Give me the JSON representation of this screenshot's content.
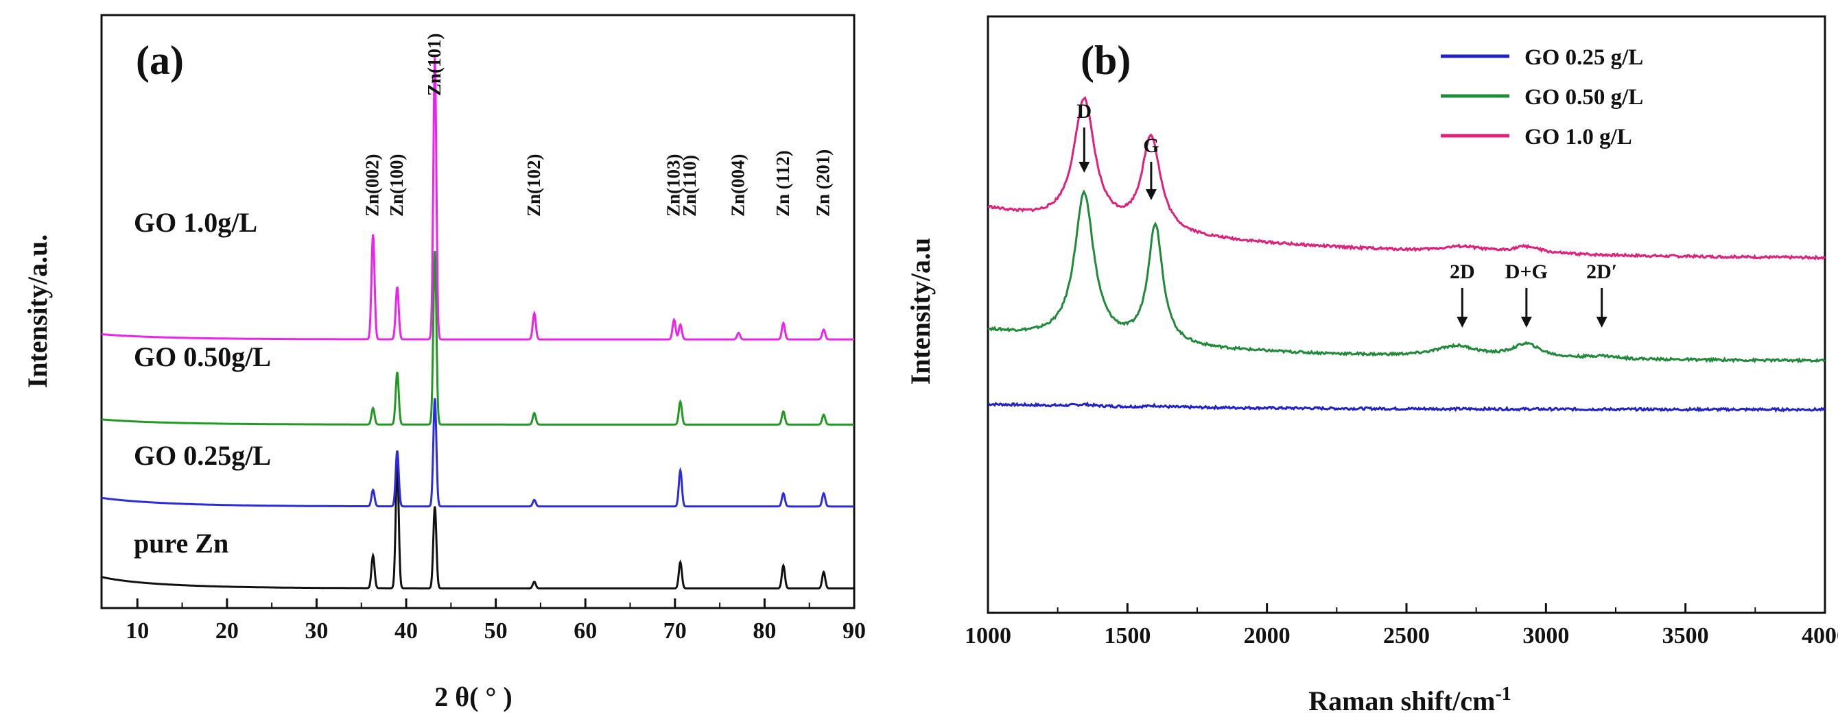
{
  "chart_data": [
    {
      "type": "line",
      "panel_label": "(a)",
      "xlabel": "2 θ( ° )",
      "ylabel": "Intensity/a.u.",
      "xlim": [
        6,
        90
      ],
      "xticks": [
        10,
        20,
        30,
        40,
        50,
        60,
        70,
        80,
        90
      ],
      "xtick_labels": [
        "10",
        "20",
        "30",
        "40",
        "50",
        "60",
        "70",
        "80",
        "90"
      ],
      "y_ticks": false,
      "series": [
        {
          "name": "pure Zn",
          "color": "#111111",
          "offset": 0,
          "baseline": 0.3,
          "decay": 1.2,
          "peaks": [
            [
              36.3,
              1.0
            ],
            [
              39.0,
              3.8
            ],
            [
              43.2,
              2.5
            ],
            [
              54.3,
              0.2
            ],
            [
              70.6,
              0.8
            ],
            [
              82.1,
              0.7
            ],
            [
              86.6,
              0.5
            ]
          ]
        },
        {
          "name": "GO 0.25g/L",
          "color": "#2b2be0",
          "offset": 2.5,
          "baseline": 0.25,
          "decay": 0.3,
          "peaks": [
            [
              36.3,
              0.5
            ],
            [
              39.0,
              1.7
            ],
            [
              43.2,
              3.3
            ],
            [
              54.3,
              0.2
            ],
            [
              70.6,
              1.1
            ],
            [
              82.1,
              0.4
            ],
            [
              86.6,
              0.4
            ]
          ]
        },
        {
          "name": "GO 0.50g/L",
          "color": "#229922",
          "offset": 5.0,
          "baseline": 0.15,
          "decay": 0.2,
          "peaks": [
            [
              36.3,
              0.5
            ],
            [
              39.0,
              1.6
            ],
            [
              43.2,
              5.3
            ],
            [
              54.3,
              0.35
            ],
            [
              70.6,
              0.7
            ],
            [
              82.1,
              0.4
            ],
            [
              86.6,
              0.3
            ]
          ]
        },
        {
          "name": "GO 1.0g/L",
          "color": "#ee22ee",
          "offset": 7.6,
          "baseline": 0.15,
          "decay": 0.2,
          "peaks": [
            [
              36.3,
              3.2
            ],
            [
              39.0,
              1.6
            ],
            [
              43.2,
              8.6
            ],
            [
              54.3,
              0.8
            ],
            [
              69.9,
              0.6
            ],
            [
              70.6,
              0.45
            ],
            [
              77.1,
              0.2
            ],
            [
              82.1,
              0.5
            ],
            [
              86.6,
              0.3
            ]
          ]
        }
      ],
      "series_labels": [
        "pure Zn",
        "GO 0.25g/L",
        "GO 0.50g/L",
        "GO 1.0g/L"
      ],
      "peak_labels": [
        {
          "text": "Zn(002)",
          "x": 36.3
        },
        {
          "text": "Zn(100)",
          "x": 39.0
        },
        {
          "text": "Zn(101)",
          "x": 43.2
        },
        {
          "text": "Zn(102)",
          "x": 54.3
        },
        {
          "text": "Zn(103)",
          "x": 69.9
        },
        {
          "text": "Zn(110)",
          "x": 71.7
        },
        {
          "text": "Zn(004)",
          "x": 77.1
        },
        {
          "text": "Zn (112)",
          "x": 82.1
        },
        {
          "text": "Zn (201)",
          "x": 86.6
        }
      ]
    },
    {
      "type": "line",
      "panel_label": "(b)",
      "xlabel": "Raman shift/cm",
      "xlabel_superscript": "-1",
      "ylabel": "Intensity/a.u",
      "xlim": [
        1000,
        4000
      ],
      "xticks": [
        1000,
        1500,
        2000,
        2500,
        3000,
        3500,
        4000
      ],
      "xtick_labels": [
        "1000",
        "1500",
        "2000",
        "2500",
        "3000",
        "3500",
        "4000"
      ],
      "y_ticks": false,
      "legend": {
        "position": "top-right",
        "entries": [
          "GO 0.25 g/L",
          "GO 0.50 g/L",
          "GO 1.0 g/L"
        ]
      },
      "series": [
        {
          "name": "GO 0.25 g/L",
          "color": "#2222cc",
          "start": 3.2,
          "end": 3.0,
          "bands": [
            [
              1345,
              0.06,
              35
            ],
            [
              1600,
              0.05,
              25
            ]
          ]
        },
        {
          "name": "GO 0.50 g/L",
          "color": "#1f8a3a",
          "start": 5.9,
          "end": 4.8,
          "bands": [
            [
              1345,
              5.4,
              42
            ],
            [
              1600,
              4.4,
              32
            ],
            [
              2680,
              0.4,
              90
            ],
            [
              2930,
              0.5,
              60
            ],
            [
              3200,
              0.1,
              60
            ]
          ]
        },
        {
          "name": "GO 1.0 g/L",
          "color": "#e0207a",
          "start": 10.4,
          "end": 8.6,
          "bands": [
            [
              1345,
              4.6,
              45
            ],
            [
              1585,
              3.5,
              40
            ],
            [
              2700,
              0.2,
              90
            ],
            [
              2930,
              0.25,
              60
            ]
          ]
        }
      ],
      "band_markers": [
        {
          "text": "D",
          "x": 1345
        },
        {
          "text": "G",
          "x": 1585
        },
        {
          "text": "2D",
          "x": 2700
        },
        {
          "text": "D+G",
          "x": 2930
        },
        {
          "text": "2D′",
          "x": 3200
        }
      ]
    }
  ]
}
